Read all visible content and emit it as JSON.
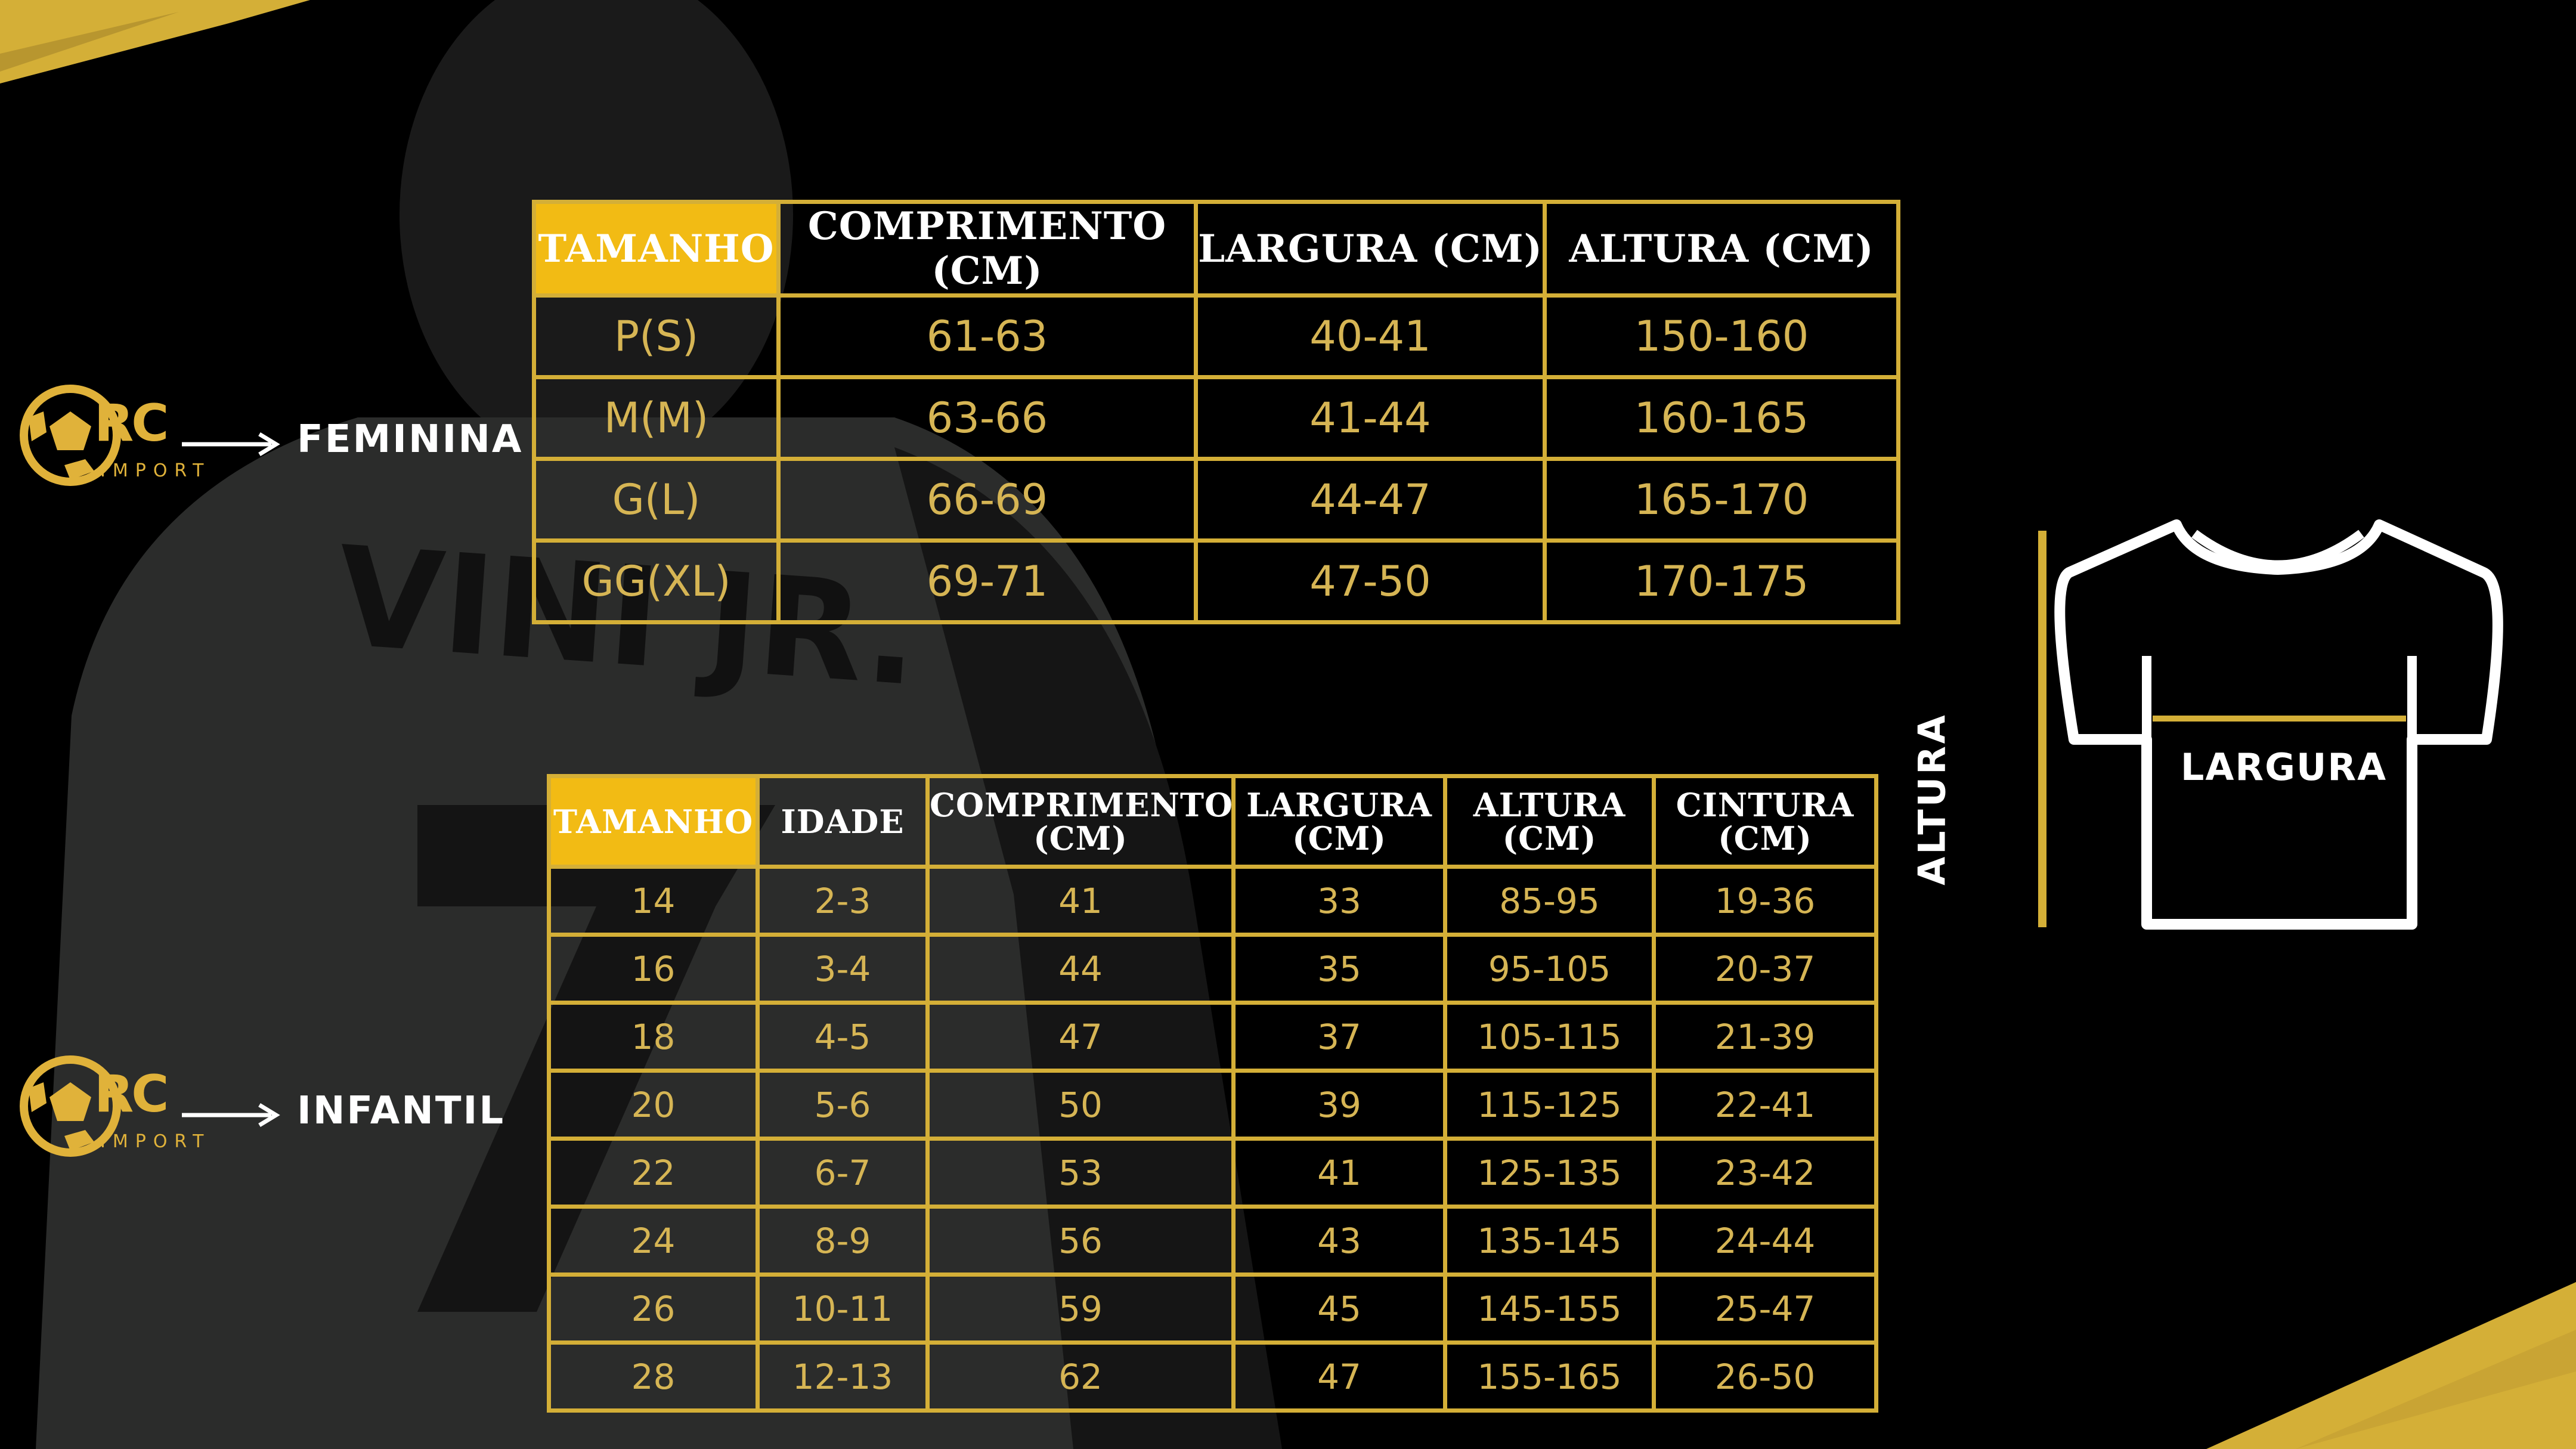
{
  "colors": {
    "accent": "#d4af37",
    "header_highlight": "#f2bb14",
    "text": "#d6b554",
    "background": "#000000"
  },
  "labels": {
    "feminina": "FEMININA",
    "infantil": "INFANTIL"
  },
  "logo": {
    "rc": "RC",
    "import": "IMPORT"
  },
  "feminina_table": {
    "headers": [
      "TAMANHO",
      "COMPRIMENTO (CM)",
      "LARGURA (CM)",
      "ALTURA (CM)"
    ],
    "rows": [
      [
        "P(S)",
        "61-63",
        "40-41",
        "150-160"
      ],
      [
        "M(M)",
        "63-66",
        "41-44",
        "160-165"
      ],
      [
        "G(L)",
        "66-69",
        "44-47",
        "165-170"
      ],
      [
        "GG(XL)",
        "69-71",
        "47-50",
        "170-175"
      ]
    ]
  },
  "infantil_table": {
    "headers": [
      "TAMANHO",
      "IDADE",
      "COMPRIMENTO (CM)",
      "LARGURA (CM)",
      "ALTURA (CM)",
      "CINTURA (CM)"
    ],
    "rows": [
      [
        "14",
        "2-3",
        "41",
        "33",
        "85-95",
        "19-36"
      ],
      [
        "16",
        "3-4",
        "44",
        "35",
        "95-105",
        "20-37"
      ],
      [
        "18",
        "4-5",
        "47",
        "37",
        "105-115",
        "21-39"
      ],
      [
        "20",
        "5-6",
        "50",
        "39",
        "115-125",
        "22-41"
      ],
      [
        "22",
        "6-7",
        "53",
        "41",
        "125-135",
        "23-42"
      ],
      [
        "24",
        "8-9",
        "56",
        "43",
        "135-145",
        "24-44"
      ],
      [
        "26",
        "10-11",
        "59",
        "45",
        "145-155",
        "25-47"
      ],
      [
        "28",
        "12-13",
        "62",
        "47",
        "155-165",
        "26-50"
      ]
    ]
  },
  "shirt_diagram": {
    "largura": "LARGURA",
    "altura": "ALTURA"
  }
}
